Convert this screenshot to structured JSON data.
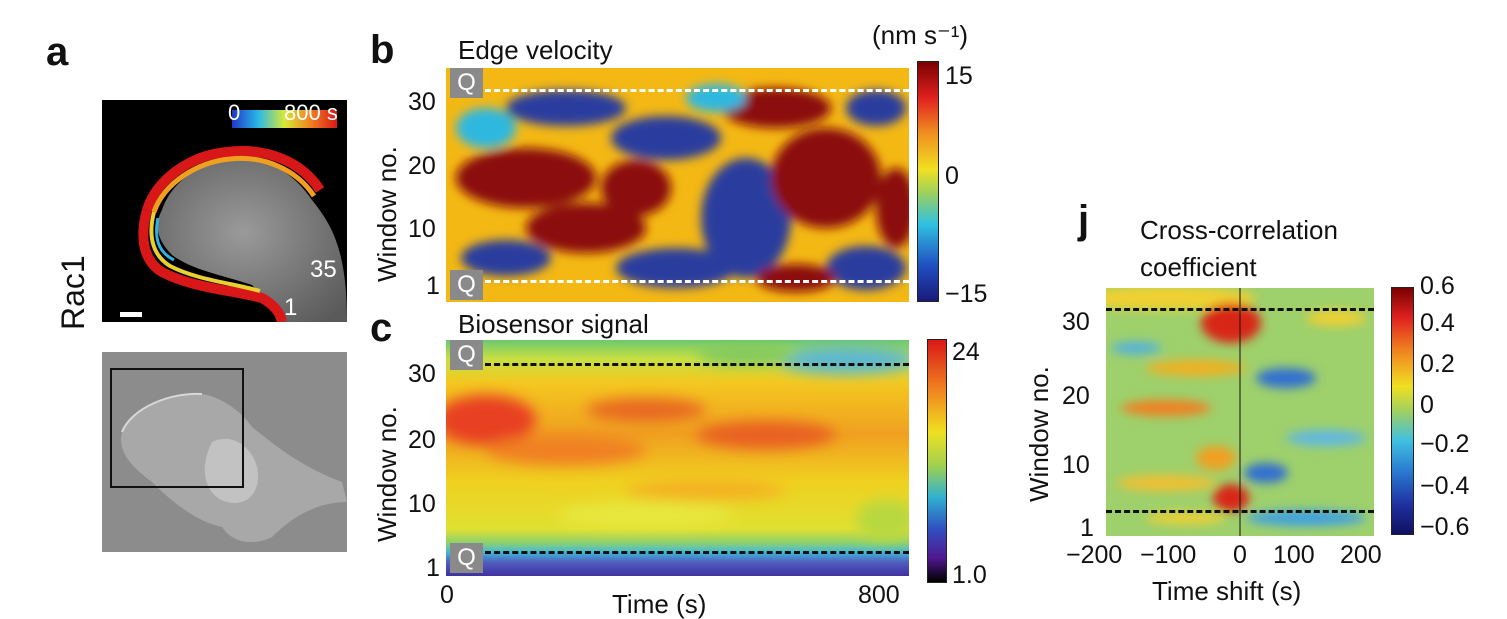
{
  "panel_a": {
    "letter": "a",
    "row_label": "Rac1",
    "time_min": "0",
    "time_max": "800 s",
    "window_top": "35",
    "window_bottom": "1"
  },
  "panel_b": {
    "letter": "b",
    "title": "Edge velocity",
    "unit": "(nm s⁻¹)",
    "ylabel": "Window no.",
    "yticks": [
      "30",
      "20",
      "10",
      "1"
    ],
    "cbar_ticks": [
      "15",
      "0",
      "−15"
    ],
    "q_label": "Q"
  },
  "panel_c": {
    "letter": "c",
    "title": "Biosensor signal",
    "ylabel": "Window no.",
    "yticks": [
      "30",
      "20",
      "10",
      "1"
    ],
    "xticks": [
      "0",
      "800"
    ],
    "xlabel": "Time (s)",
    "cbar_ticks": [
      "24",
      "1.0"
    ],
    "q_label": "Q"
  },
  "panel_j": {
    "letter": "j",
    "title_line1": "Cross-correlation",
    "title_line2": "coefficient",
    "ylabel": "Window no.",
    "yticks": [
      "30",
      "20",
      "10",
      "1"
    ],
    "xticks": [
      "−200",
      "−100",
      "0",
      "100",
      "200"
    ],
    "xlabel": "Time shift (s)",
    "cbar_ticks": [
      "0.6",
      "0.4",
      "0.2",
      "0",
      "−0.2",
      "−0.4",
      "−0.6"
    ]
  },
  "colors": {
    "jet_dark_red": "#8b0a0a",
    "jet_blue": "#2c3e9e",
    "dash_white": "#ffffff",
    "dash_black": "#111111"
  }
}
